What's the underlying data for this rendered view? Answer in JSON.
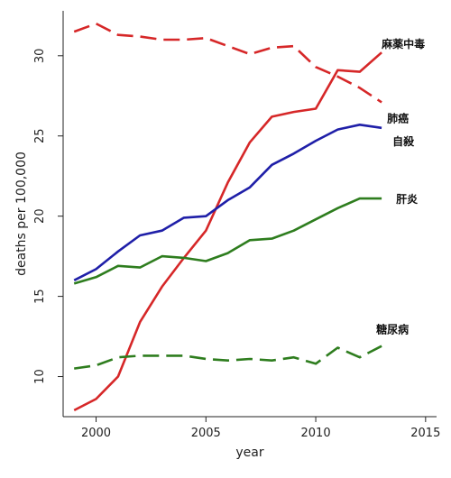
{
  "chart_data": {
    "type": "line",
    "title": "",
    "xlabel": "year",
    "ylabel": "deaths per 100,000",
    "xlim": [
      1998.5,
      2015.5
    ],
    "ylim": [
      7.5,
      32.8
    ],
    "x_ticks": [
      2000,
      2005,
      2010,
      2015
    ],
    "x_tick_labels": [
      "2000",
      "2005",
      "2010",
      "2015"
    ],
    "y_ticks": [
      10,
      15,
      20,
      25,
      30
    ],
    "y_tick_labels": [
      "10",
      "15",
      "20",
      "25",
      "30"
    ],
    "grid": false,
    "legend": "none",
    "x": [
      1999,
      2000,
      2001,
      2002,
      2003,
      2004,
      2005,
      2006,
      2007,
      2008,
      2009,
      2010,
      2011,
      2012,
      2013
    ],
    "series": [
      {
        "name": "麻薬中毒",
        "color": "#d62728",
        "dash": "solid",
        "values": [
          7.9,
          8.6,
          10.0,
          13.4,
          15.6,
          17.4,
          19.1,
          22.1,
          24.6,
          26.2,
          26.5,
          26.7,
          29.1,
          29.0,
          30.2
        ]
      },
      {
        "name": "肺癌",
        "color": "#d62728",
        "dash": "dashed",
        "values": [
          31.5,
          32.0,
          31.3,
          31.2,
          31.0,
          31.0,
          31.1,
          30.6,
          30.1,
          30.5,
          30.6,
          29.3,
          28.7,
          28.0,
          27.1
        ]
      },
      {
        "name": "自殺",
        "color": "#1f1fa8",
        "dash": "solid",
        "values": [
          16.0,
          16.7,
          17.8,
          18.8,
          19.1,
          19.9,
          20.0,
          21.0,
          21.8,
          23.2,
          23.9,
          24.7,
          25.4,
          25.7,
          25.5
        ]
      },
      {
        "name": "肝炎",
        "color": "#2e7d1e",
        "dash": "solid",
        "values": [
          15.8,
          16.2,
          16.9,
          16.8,
          17.5,
          17.4,
          17.2,
          17.7,
          18.5,
          18.6,
          19.1,
          19.8,
          20.5,
          21.1,
          21.1
        ]
      },
      {
        "name": "糖尿病",
        "color": "#2e7d1e",
        "dash": "dashed",
        "values": [
          10.5,
          10.7,
          11.2,
          11.3,
          11.3,
          11.3,
          11.1,
          11.0,
          11.1,
          11.0,
          11.2,
          10.8,
          11.8,
          11.2,
          11.9
        ]
      }
    ],
    "annotations": [
      {
        "text": "麻薬中毒",
        "series": "麻薬中毒"
      },
      {
        "text": "肺癌",
        "series": "肺癌"
      },
      {
        "text": "自殺",
        "series": "自殺"
      },
      {
        "text": "肝炎",
        "series": "肝炎"
      },
      {
        "text": "糖尿病",
        "series": "糖尿病"
      }
    ]
  }
}
